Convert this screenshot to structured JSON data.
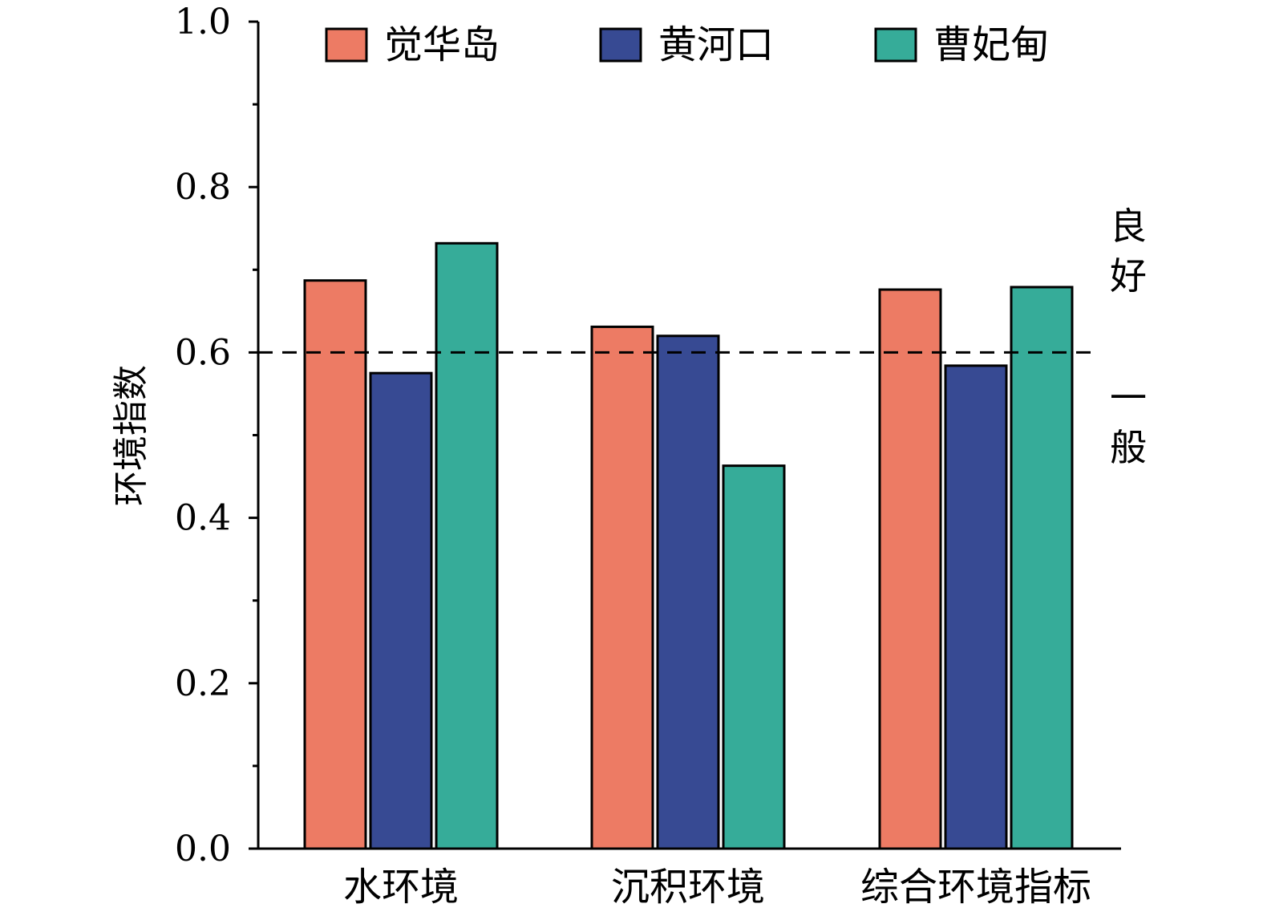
{
  "chart_data": {
    "type": "bar",
    "title": "",
    "xlabel": "",
    "ylabel": "环境指数",
    "ylim": [
      0,
      1.0
    ],
    "yticks": [
      0.0,
      0.2,
      0.4,
      0.6,
      0.8,
      1.0
    ],
    "ytick_labels": [
      "0.0",
      "0.2",
      "0.4",
      "0.6",
      "0.8",
      "1.0"
    ],
    "categories": [
      "水环境",
      "沉积环境",
      "综合环境指标"
    ],
    "series": [
      {
        "name": "觉华岛",
        "color": "#ED7B64",
        "values": [
          0.687,
          0.631,
          0.676
        ]
      },
      {
        "name": "黄河口",
        "color": "#374A93",
        "values": [
          0.575,
          0.62,
          0.584
        ]
      },
      {
        "name": "曹妃甸",
        "color": "#36AC99",
        "values": [
          0.732,
          0.463,
          0.679
        ]
      }
    ],
    "threshold": {
      "value": 0.6,
      "style": "dashed"
    },
    "zone_labels": {
      "above": "良好",
      "below": "一般"
    },
    "legend_position": "top",
    "grid": false
  }
}
